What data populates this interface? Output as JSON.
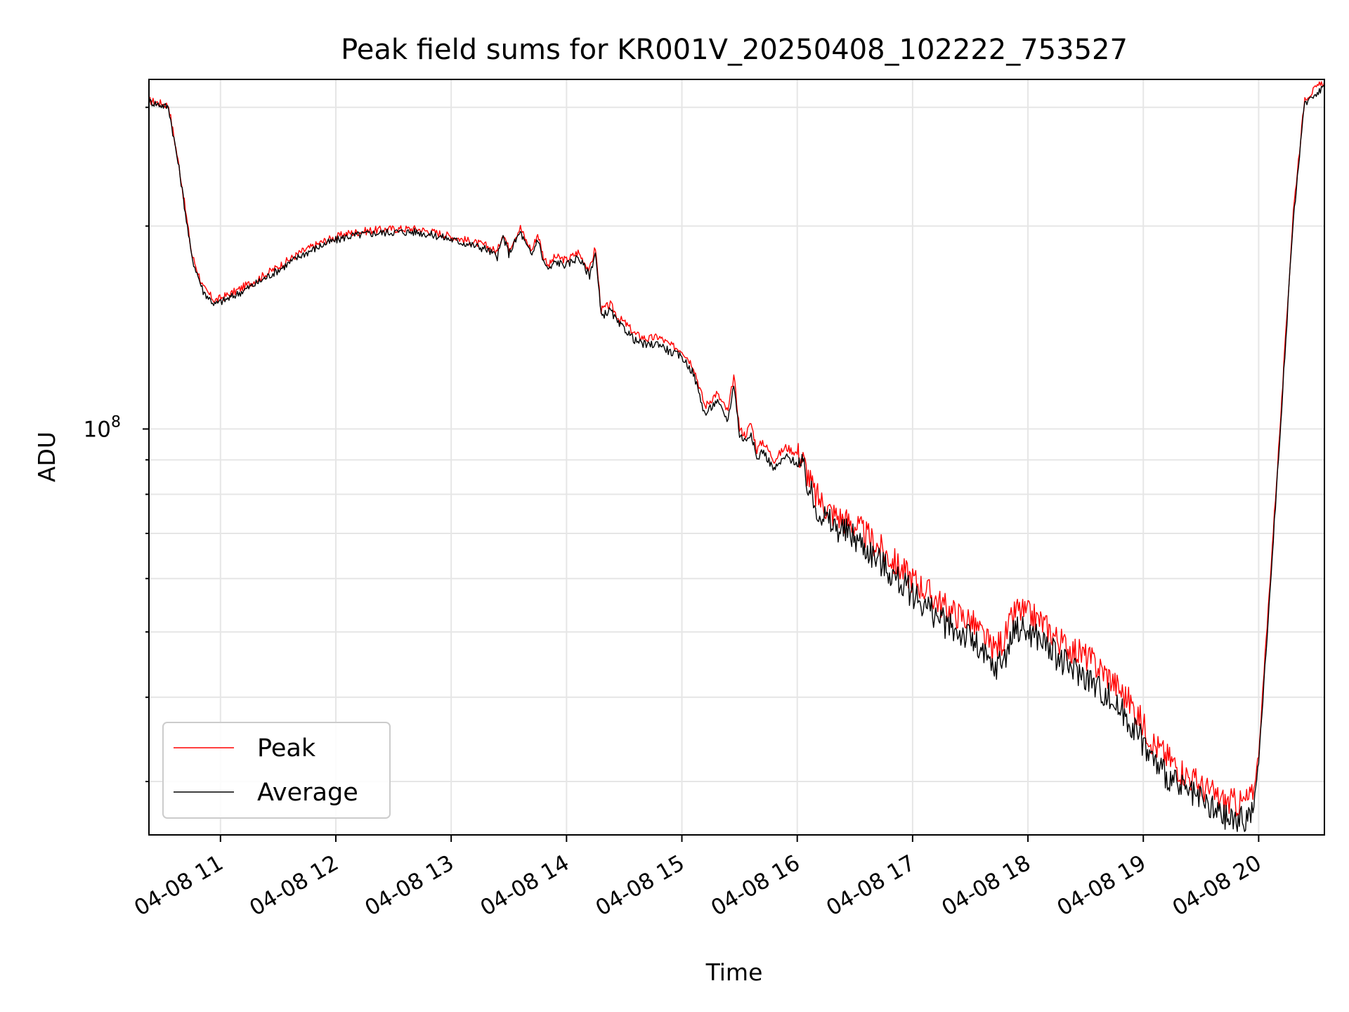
{
  "chart_data": {
    "type": "line",
    "title": "Peak field sums for KR001V_20250408_102222_753527",
    "xlabel": "Time",
    "ylabel": "ADU",
    "yscale": "log",
    "ylim": [
      25000000.0,
      330000000.0
    ],
    "xlim_hours": [
      10.38,
      20.57
    ],
    "x_tick_labels": [
      "04-08 11",
      "04-08 12",
      "04-08 13",
      "04-08 14",
      "04-08 15",
      "04-08 16",
      "04-08 17",
      "04-08 18",
      "04-08 19",
      "04-08 20"
    ],
    "x_tick_hours": [
      11,
      12,
      13,
      14,
      15,
      16,
      17,
      18,
      19,
      20
    ],
    "y_major_ticks": [
      {
        "value": 100000000.0,
        "base": "10",
        "exp": "8"
      }
    ],
    "grid": true,
    "legend_position": "lower-left",
    "series": [
      {
        "name": "Peak",
        "color": "#ff0000",
        "x_hours": [
          10.38,
          10.55,
          10.65,
          10.75,
          10.85,
          10.95,
          11.1,
          11.3,
          11.5,
          11.7,
          11.9,
          12.1,
          12.3,
          12.5,
          12.7,
          12.9,
          13.1,
          13.3,
          13.4,
          13.45,
          13.5,
          13.55,
          13.6,
          13.65,
          13.7,
          13.75,
          13.8,
          13.85,
          13.9,
          14.0,
          14.1,
          14.2,
          14.25,
          14.3,
          14.38,
          14.45,
          14.5,
          14.55,
          14.6,
          14.7,
          14.8,
          14.9,
          15.0,
          15.1,
          15.2,
          15.3,
          15.4,
          15.45,
          15.5,
          15.55,
          15.6,
          15.65,
          15.7,
          15.8,
          15.9,
          16.0,
          16.05,
          16.15,
          16.3,
          16.5,
          16.7,
          16.9,
          17.1,
          17.3,
          17.5,
          17.7,
          17.8,
          17.9,
          18.0,
          18.1,
          18.2,
          18.3,
          18.5,
          18.7,
          18.9,
          19.1,
          19.3,
          19.5,
          19.7,
          19.85,
          19.95,
          20.0,
          20.1,
          20.2,
          20.3,
          20.4,
          20.5,
          20.57
        ],
        "y": [
          307000000.0,
          302000000.0,
          240000000.0,
          182000000.0,
          162000000.0,
          155000000.0,
          159000000.0,
          166000000.0,
          174000000.0,
          183000000.0,
          190000000.0,
          195000000.0,
          197000000.0,
          198000000.0,
          198000000.0,
          195000000.0,
          191000000.0,
          187000000.0,
          183000000.0,
          196000000.0,
          185000000.0,
          192000000.0,
          199000000.0,
          190000000.0,
          184000000.0,
          195000000.0,
          180000000.0,
          175000000.0,
          180000000.0,
          178000000.0,
          183000000.0,
          172000000.0,
          186000000.0,
          150000000.0,
          153000000.0,
          146000000.0,
          144000000.0,
          141000000.0,
          138000000.0,
          136000000.0,
          137000000.0,
          133000000.0,
          131000000.0,
          124000000.0,
          108000000.0,
          113000000.0,
          106000000.0,
          120000000.0,
          100000000.0,
          98000000.0,
          102000000.0,
          93000000.0,
          96000000.0,
          90000000.0,
          94000000.0,
          92000000.0,
          90000000.0,
          80000000.0,
          75000000.0,
          72000000.0,
          67000000.0,
          62000000.0,
          58000000.0,
          54000000.0,
          52000000.0,
          47000000.0,
          49000000.0,
          54000000.0,
          53000000.0,
          52000000.0,
          50000000.0,
          48000000.0,
          46000000.0,
          43000000.0,
          39000000.0,
          34000000.0,
          31500000.0,
          29500000.0,
          28000000.0,
          27800000.0,
          28500000.0,
          33000000.0,
          60000000.0,
          110000000.0,
          210000000.0,
          310000000.0,
          320000000.0,
          328000000.0
        ]
      },
      {
        "name": "Average",
        "color": "#000000",
        "x_hours": [
          10.38,
          10.55,
          10.65,
          10.75,
          10.85,
          10.95,
          11.1,
          11.3,
          11.5,
          11.7,
          11.9,
          12.1,
          12.3,
          12.5,
          12.7,
          12.9,
          13.1,
          13.3,
          13.4,
          13.45,
          13.5,
          13.55,
          13.6,
          13.65,
          13.7,
          13.75,
          13.8,
          13.85,
          13.9,
          14.0,
          14.1,
          14.2,
          14.25,
          14.3,
          14.38,
          14.45,
          14.5,
          14.55,
          14.6,
          14.7,
          14.8,
          14.9,
          15.0,
          15.1,
          15.2,
          15.3,
          15.4,
          15.45,
          15.5,
          15.55,
          15.6,
          15.65,
          15.7,
          15.8,
          15.9,
          16.0,
          16.05,
          16.15,
          16.3,
          16.5,
          16.7,
          16.9,
          17.1,
          17.3,
          17.5,
          17.7,
          17.8,
          17.9,
          18.0,
          18.1,
          18.2,
          18.3,
          18.5,
          18.7,
          18.9,
          19.1,
          19.3,
          19.5,
          19.7,
          19.85,
          19.95,
          20.0,
          20.1,
          20.2,
          20.3,
          20.4,
          20.5,
          20.57
        ],
        "y": [
          306000000.0,
          300000000.0,
          238000000.0,
          180000000.0,
          160000000.0,
          153000000.0,
          157000000.0,
          164000000.0,
          172000000.0,
          181000000.0,
          188000000.0,
          193000000.0,
          195000000.0,
          196000000.0,
          196000000.0,
          193000000.0,
          189000000.0,
          185000000.0,
          180000000.0,
          193000000.0,
          182000000.0,
          189000000.0,
          196000000.0,
          187000000.0,
          181000000.0,
          192000000.0,
          177000000.0,
          172000000.0,
          177000000.0,
          175000000.0,
          180000000.0,
          169000000.0,
          183000000.0,
          147000000.0,
          150000000.0,
          143000000.0,
          141000000.0,
          138000000.0,
          135000000.0,
          133000000.0,
          134000000.0,
          130000000.0,
          128000000.0,
          121000000.0,
          105000000.0,
          110000000.0,
          103000000.0,
          117000000.0,
          98000000.0,
          96000000.0,
          99000000.0,
          90000000.0,
          93000000.0,
          87000000.0,
          91000000.0,
          89000000.0,
          87000000.0,
          77000000.0,
          72000000.0,
          69000000.0,
          64000000.0,
          59000000.0,
          55000000.0,
          51000000.0,
          49000000.0,
          44000000.0,
          46000000.0,
          51000000.0,
          50000000.0,
          49000000.0,
          47000000.0,
          45000000.0,
          43000000.0,
          40000000.0,
          36500000.0,
          32000000.0,
          29500000.0,
          28000000.0,
          26500000.0,
          26200000.0,
          27000000.0,
          32000000.0,
          58000000.0,
          108000000.0,
          205000000.0,
          305000000.0,
          315000000.0,
          322000000.0
        ]
      }
    ]
  }
}
